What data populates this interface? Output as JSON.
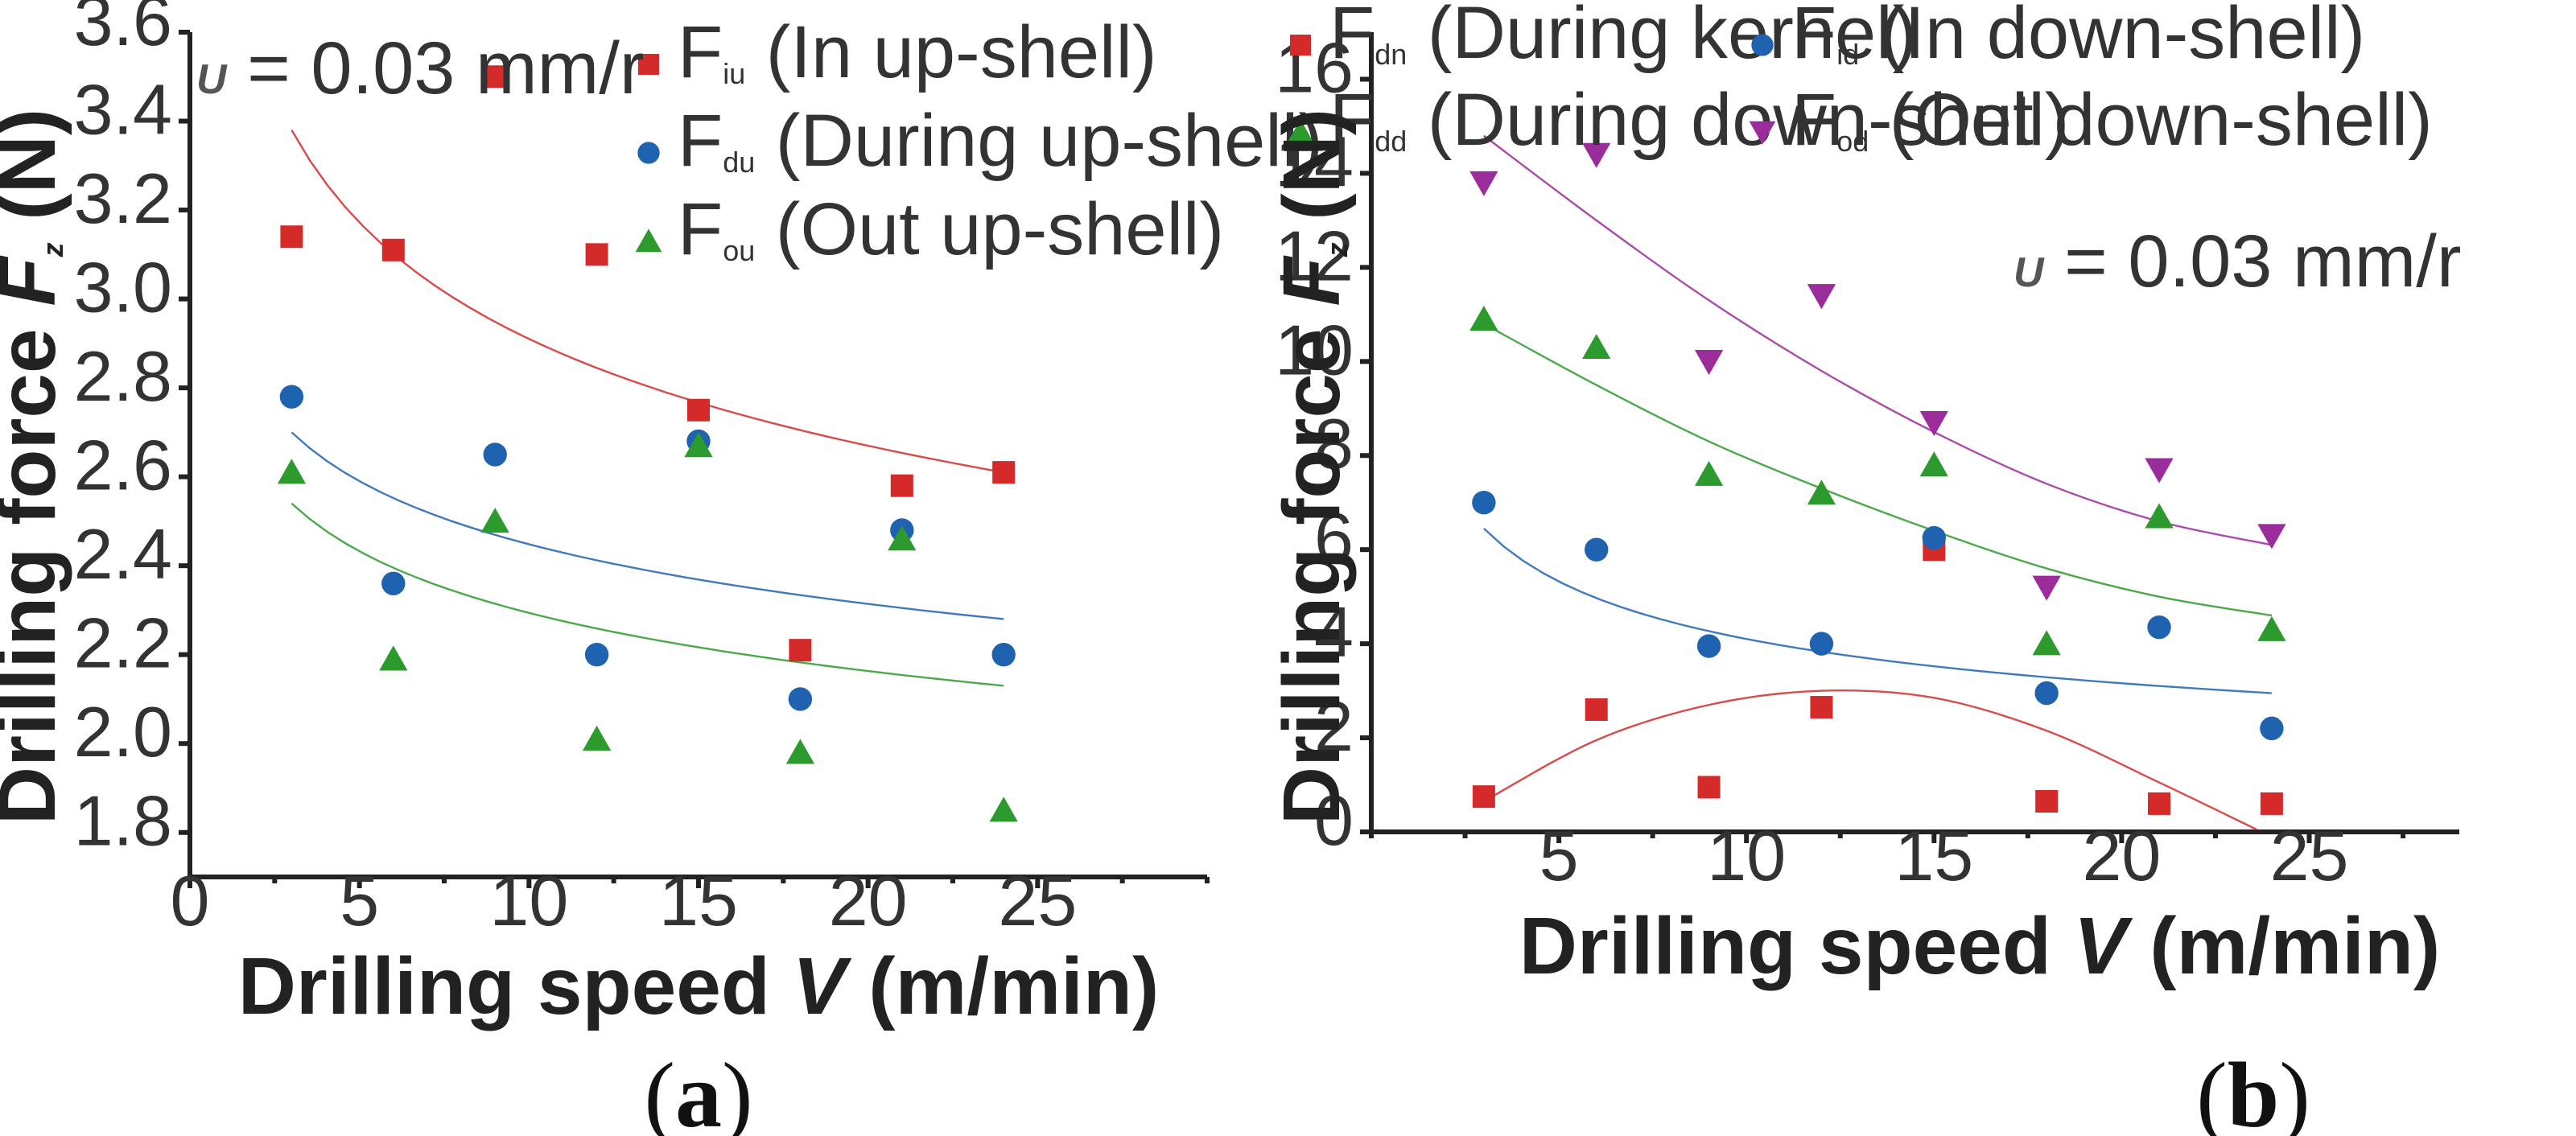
{
  "chart_data": [
    {
      "type": "scatter",
      "panel_label": "a",
      "xlabel": "Drilling speed",
      "xlabel_var": "V",
      "xlabel_unit": "(m/min)",
      "ylabel": "Drilling force",
      "ylabel_var": "F",
      "ylabel_sub": "z",
      "ylabel_unit": "(N)",
      "xlim": [
        0,
        30
      ],
      "ylim": [
        1.7,
        3.6
      ],
      "x_ticks": [
        "0",
        "5",
        "10",
        "15",
        "20",
        "25"
      ],
      "x_tick_values": [
        0,
        5,
        10,
        15,
        20,
        25
      ],
      "y_ticks": [
        "1.8",
        "2.0",
        "2.2",
        "2.4",
        "2.6",
        "2.8",
        "3.0",
        "3.2",
        "3.4",
        "3.6"
      ],
      "y_tick_values": [
        1.8,
        2.0,
        2.2,
        2.4,
        2.6,
        2.8,
        3.0,
        3.2,
        3.4,
        3.6
      ],
      "annotation": {
        "var": "U",
        "text": " = 0.03 mm/r"
      },
      "series": [
        {
          "name_main": "F",
          "name_sub": "iu",
          "name_desc": "  (In up-shell)",
          "marker": "square",
          "color": "#d42a2a",
          "x": [
            3,
            6,
            9,
            12,
            15,
            18,
            21,
            24
          ],
          "y": [
            3.14,
            3.11,
            3.5,
            3.1,
            2.75,
            2.21,
            2.58,
            2.61
          ],
          "fit_x": [
            3,
            24
          ],
          "fit_y": [
            3.38,
            2.61
          ]
        },
        {
          "name_main": "F",
          "name_sub": "du",
          "name_desc": " (During up-shell)",
          "marker": "circle",
          "color": "#1f63b0",
          "x": [
            3,
            6,
            9,
            12,
            15,
            18,
            21,
            24
          ],
          "y": [
            2.78,
            2.36,
            2.65,
            2.2,
            2.68,
            2.1,
            2.48,
            2.2
          ],
          "fit_x": [
            3,
            24
          ],
          "fit_y": [
            2.7,
            2.28
          ]
        },
        {
          "name_main": "F",
          "name_sub": "ou",
          "name_desc": " (Out up-shell)",
          "marker": "triangle",
          "color": "#2c9a2c",
          "x": [
            3,
            6,
            9,
            12,
            15,
            18,
            21,
            24
          ],
          "y": [
            2.61,
            2.19,
            2.5,
            2.01,
            2.67,
            1.98,
            2.46,
            1.85
          ],
          "fit_x": [
            3,
            24
          ],
          "fit_y": [
            2.54,
            2.13
          ]
        }
      ]
    },
    {
      "type": "scatter",
      "panel_label": "b",
      "xlabel": "Drilling speed",
      "xlabel_var": "V",
      "xlabel_unit": "(m/min)",
      "ylabel": "Drilling force",
      "ylabel_var": "F",
      "ylabel_sub": "z",
      "ylabel_unit": "(N)",
      "xlim": [
        0,
        29
      ],
      "ylim": [
        0,
        17
      ],
      "x_ticks": [
        "5",
        "10",
        "15",
        "20",
        "25"
      ],
      "x_tick_values": [
        5,
        10,
        15,
        20,
        25
      ],
      "y_ticks": [
        "0",
        "2",
        "4",
        "6",
        "8",
        "10",
        "12",
        "14",
        "16"
      ],
      "y_tick_values": [
        0,
        2,
        4,
        6,
        8,
        10,
        12,
        14,
        16
      ],
      "annotation": {
        "var": "U",
        "text": " = 0.03 mm/r"
      },
      "series": [
        {
          "name_main": "F",
          "name_sub": "dn",
          "name_desc": " (During kernel)",
          "marker": "square",
          "color": "#d42a2a",
          "x": [
            3,
            6,
            9,
            12,
            15,
            18,
            21,
            24
          ],
          "y": [
            0.75,
            2.6,
            0.95,
            2.65,
            6.0,
            0.65,
            0.6,
            0.6
          ],
          "fit_x": [
            3,
            6,
            9,
            12,
            15,
            18,
            21,
            23.6
          ],
          "fit_y": [
            0.65,
            1.95,
            2.7,
            3.0,
            2.85,
            2.15,
            1.05,
            0.05
          ]
        },
        {
          "name_main": "F",
          "name_sub": "dd",
          "name_desc": " (During down-shell)",
          "marker": "triangle",
          "color": "#2c9a2c",
          "x": [
            3,
            6,
            9,
            12,
            15,
            18,
            21,
            24
          ],
          "y": [
            10.9,
            10.3,
            7.6,
            7.2,
            7.8,
            4.0,
            6.7,
            4.3
          ],
          "fit_x": [
            3,
            6,
            9,
            12,
            15,
            18,
            21,
            24
          ],
          "fit_y": [
            10.8,
            9.5,
            8.3,
            7.3,
            6.4,
            5.6,
            5.0,
            4.6
          ]
        },
        {
          "name_main": "F",
          "name_sub": "id",
          "name_desc": " (In down-shell)",
          "marker": "circle",
          "color": "#1f63b0",
          "x": [
            3,
            6,
            9,
            12,
            15,
            18,
            21,
            24
          ],
          "y": [
            7.0,
            6.0,
            3.95,
            4.0,
            6.25,
            2.95,
            4.35,
            2.2
          ],
          "fit_x": [
            3,
            24
          ],
          "fit_y": [
            6.45,
            2.95
          ]
        },
        {
          "name_main": "F",
          "name_sub": "od",
          "name_desc": " (Out down-shell)",
          "marker": "triangle-down",
          "color": "#9b2c9b",
          "x": [
            3,
            6,
            9,
            12,
            15,
            18,
            21,
            24
          ],
          "y": [
            13.8,
            14.4,
            10.0,
            11.4,
            8.7,
            5.2,
            7.7,
            6.3
          ],
          "fit_x": [
            3,
            6,
            9,
            12,
            15,
            18,
            21,
            24
          ],
          "fit_y": [
            14.8,
            13.0,
            11.3,
            9.8,
            8.5,
            7.4,
            6.6,
            6.1
          ]
        }
      ]
    }
  ],
  "captions": [
    {
      "open": "(",
      "label": "a",
      "close": ")"
    },
    {
      "open": "(",
      "label": "b",
      "close": ")"
    }
  ]
}
